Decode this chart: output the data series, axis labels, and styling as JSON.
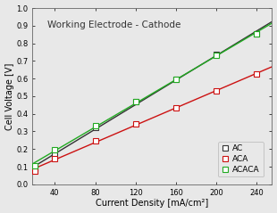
{
  "title": "Working Electrode - Cathode",
  "xlabel": "Current Density [mA/cm²]",
  "ylabel": "Cell Voltage [V]",
  "xlim": [
    18,
    255
  ],
  "ylim": [
    0.0,
    1.0
  ],
  "xticks": [
    40,
    80,
    120,
    160,
    200,
    240
  ],
  "yticks": [
    0.0,
    0.1,
    0.2,
    0.3,
    0.4,
    0.5,
    0.6,
    0.7,
    0.8,
    0.9,
    1.0
  ],
  "series": [
    {
      "label": "AC",
      "color": "#333333",
      "marker": "s",
      "marker_facecolor": "white",
      "marker_edgecolor": "#333333",
      "x": [
        20,
        40,
        80,
        120,
        160,
        200,
        240
      ],
      "y": [
        0.09,
        0.165,
        0.325,
        0.47,
        0.595,
        0.735,
        0.855
      ]
    },
    {
      "label": "ACA",
      "color": "#cc1111",
      "marker": "s",
      "marker_facecolor": "white",
      "marker_edgecolor": "#cc1111",
      "x": [
        20,
        40,
        80,
        120,
        160,
        200,
        240
      ],
      "y": [
        0.075,
        0.145,
        0.245,
        0.345,
        0.435,
        0.53,
        0.625
      ]
    },
    {
      "label": "ACACA",
      "color": "#22aa22",
      "marker": "s",
      "marker_facecolor": "white",
      "marker_edgecolor": "#22aa22",
      "x": [
        20,
        40,
        80,
        120,
        160,
        200,
        240
      ],
      "y": [
        0.105,
        0.195,
        0.335,
        0.47,
        0.595,
        0.73,
        0.855
      ]
    }
  ],
  "legend_fontsize": 6.5,
  "title_fontsize": 7.5,
  "axis_fontsize": 7,
  "tick_fontsize": 6,
  "background_color": "#e8e8e8",
  "plot_bg_color": "#e8e8e8",
  "linewidth": 1.0,
  "markersize": 4.0
}
